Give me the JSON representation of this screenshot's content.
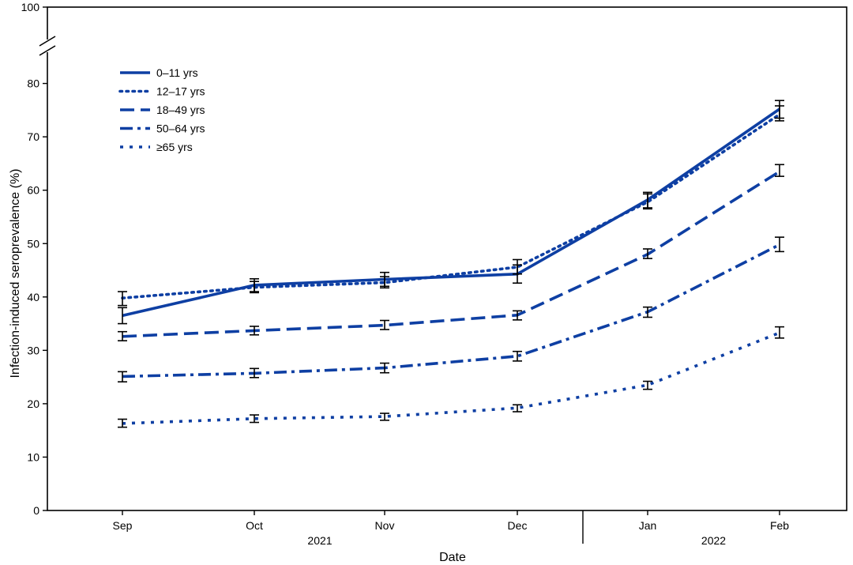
{
  "chart_data": {
    "type": "line",
    "xlabel": "Date",
    "ylabel": "Infection-induced seroprevalence (%)",
    "categories": [
      "Sep",
      "Oct",
      "Nov",
      "Dec",
      "Jan",
      "Feb"
    ],
    "year_groups": [
      {
        "label": "2021",
        "from": 0,
        "to": 3
      },
      {
        "label": "2022",
        "from": 4,
        "to": 5
      }
    ],
    "ylim": [
      0,
      100
    ],
    "yticks": [
      "0",
      "10",
      "20",
      "30",
      "40",
      "50",
      "60",
      "70",
      "80",
      "100"
    ],
    "axis_break": "between 80 and 100",
    "grid": false,
    "legend_position": "top-left",
    "line_color": "#0e3fa3",
    "error_bar_color": "#000000",
    "series": [
      {
        "name": "0–11 yrs",
        "style": "solid",
        "values": [
          36.5,
          42.2,
          43.3,
          44.3,
          58.2,
          75.2
        ],
        "ci_low": [
          35.0,
          41.0,
          42.0,
          42.6,
          56.7,
          73.5
        ],
        "ci_high": [
          38.0,
          43.4,
          44.6,
          46.0,
          59.6,
          76.8
        ]
      },
      {
        "name": "12–17 yrs",
        "style": "dotted",
        "values": [
          39.8,
          41.8,
          42.7,
          45.6,
          57.8,
          74.2
        ],
        "ci_low": [
          38.4,
          40.8,
          41.7,
          44.3,
          56.5,
          73.0
        ],
        "ci_high": [
          41.0,
          42.9,
          43.8,
          47.0,
          59.3,
          75.8
        ]
      },
      {
        "name": "18–49 yrs",
        "style": "dashed",
        "values": [
          32.6,
          33.7,
          34.7,
          36.6,
          48.0,
          63.5
        ],
        "ci_low": [
          31.8,
          32.9,
          33.9,
          35.7,
          47.2,
          62.6
        ],
        "ci_high": [
          33.5,
          34.5,
          35.6,
          37.4,
          49.0,
          64.8
        ]
      },
      {
        "name": "50–64 yrs",
        "style": "dashdot",
        "values": [
          25.1,
          25.7,
          26.7,
          28.9,
          37.2,
          49.8
        ],
        "ci_low": [
          24.1,
          24.9,
          25.8,
          28.0,
          36.2,
          48.5
        ],
        "ci_high": [
          26.0,
          26.6,
          27.6,
          29.8,
          38.1,
          51.2
        ]
      },
      {
        "name": "≥65 yrs",
        "style": "short-dotted",
        "values": [
          16.3,
          17.2,
          17.6,
          19.2,
          23.5,
          33.3
        ],
        "ci_low": [
          15.6,
          16.5,
          16.9,
          18.5,
          22.7,
          32.3
        ],
        "ci_high": [
          17.1,
          17.9,
          18.2,
          19.8,
          24.2,
          34.4
        ]
      }
    ]
  }
}
